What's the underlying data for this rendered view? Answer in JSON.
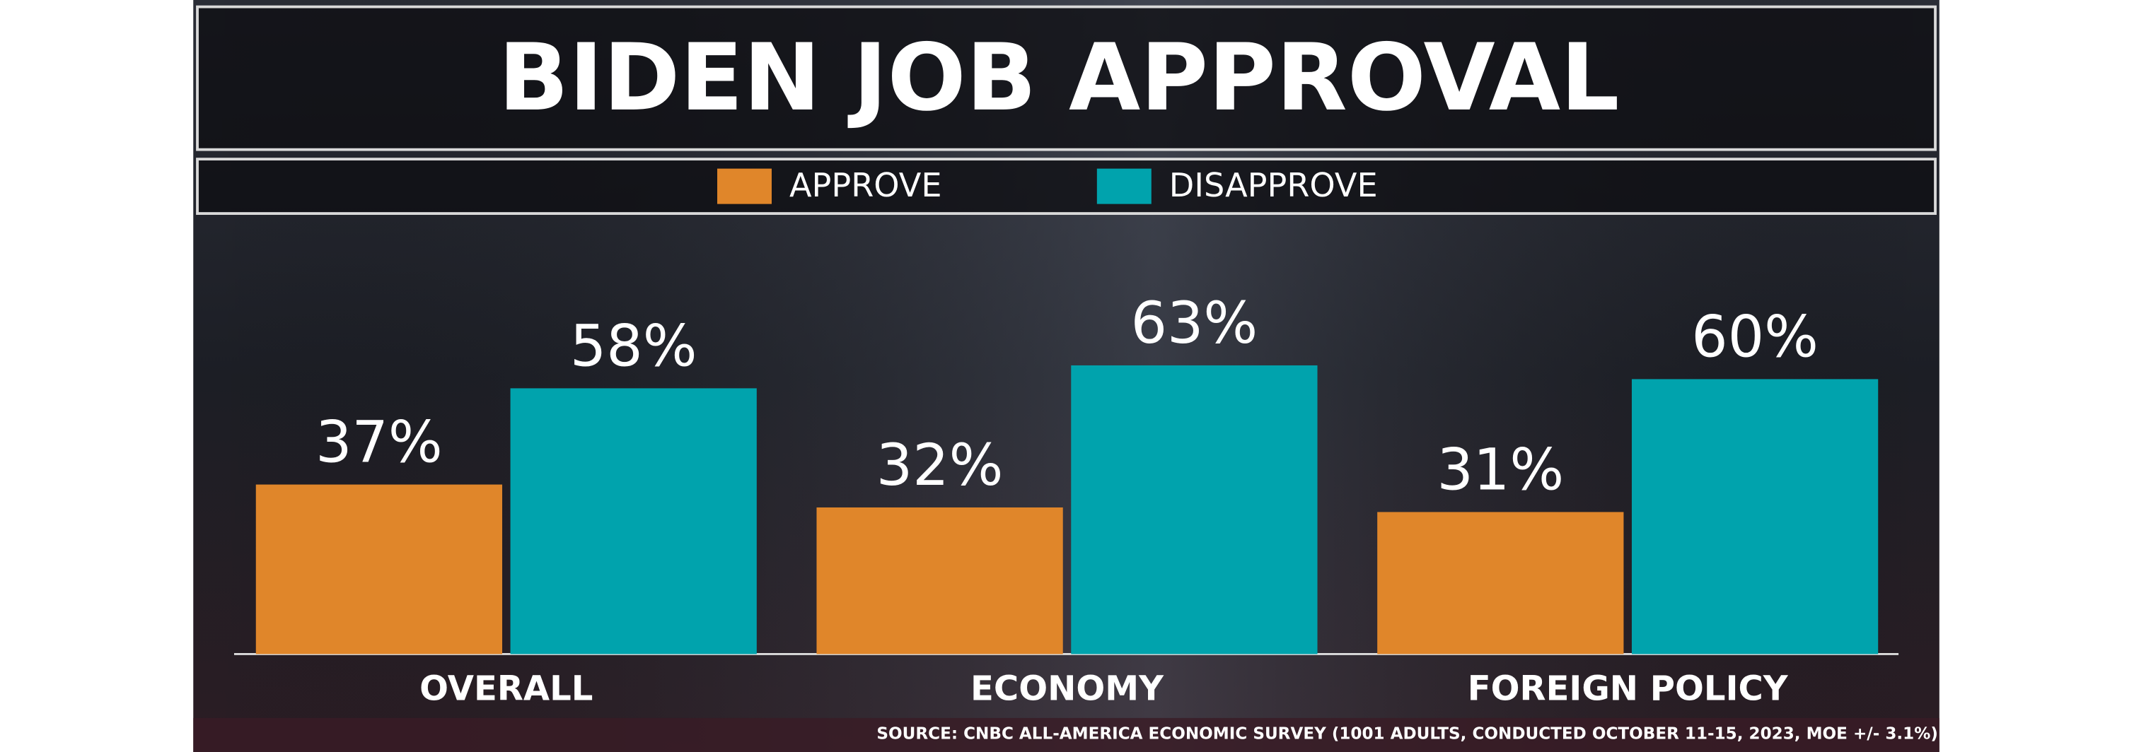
{
  "chart_data": {
    "type": "bar",
    "title": "BIDEN JOB APPROVAL",
    "categories": [
      "OVERALL",
      "ECONOMY",
      "FOREIGN POLICY"
    ],
    "series": [
      {
        "name": "APPROVE",
        "color": "#e0862a",
        "values": [
          37,
          32,
          31
        ],
        "value_labels": [
          "37%",
          "32%",
          "31%"
        ]
      },
      {
        "name": "DISAPPROVE",
        "color": "#00a3ad",
        "values": [
          58,
          63,
          60
        ],
        "value_labels": [
          "58%",
          "63%",
          "60%"
        ]
      }
    ],
    "source": "SOURCE: CNBC ALL-AMERICA ECONOMIC SURVEY (1001 ADULTS, CONDUCTED OCTOBER 11-15, 2023, MOE +/- 3.1%)"
  }
}
